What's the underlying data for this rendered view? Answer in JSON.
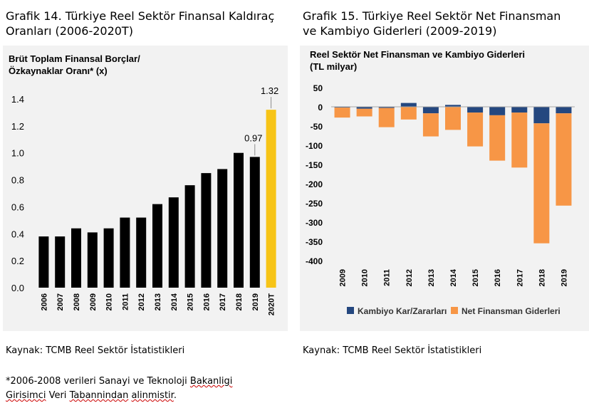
{
  "captions": {
    "left_line1": "Grafik 14. Türkiye Reel Sektör Finansal Kaldıraç",
    "left_line2": "Oranları (2006-2020T)",
    "right_line1": "Grafik 15. Türkiye Reel Sektör Net Finansman",
    "right_line2": "ve Kambiyo Giderleri (2009-2019)"
  },
  "sources": {
    "left": "Kaynak: TCMB Reel Sektör İstatistikleri",
    "right": "Kaynak: TCMB Reel Sektör İstatistikleri"
  },
  "note": {
    "part1": "*2006-2008 verileri Sanayi ve Teknoloji ",
    "part2": "Bakanligi",
    "part3": "Girisimci",
    "part4": " Veri ",
    "part5": "Tabannindan",
    "part6": " ",
    "part7": "alinmistir",
    "part8": "."
  },
  "chart_data": [
    {
      "type": "bar",
      "title_line1": "Brüt Toplam Finansal Borçlar/",
      "title_line2": "Özkaynaklar Oranı* (x)",
      "categories": [
        "2006",
        "2007",
        "2008",
        "2009",
        "2010",
        "2011",
        "2012",
        "2013",
        "2014",
        "2015",
        "2016",
        "2017",
        "2018",
        "2019",
        "2020T"
      ],
      "values": [
        0.38,
        0.38,
        0.44,
        0.41,
        0.44,
        0.52,
        0.52,
        0.62,
        0.67,
        0.76,
        0.85,
        0.88,
        1.0,
        0.97,
        1.32
      ],
      "ylim": [
        0,
        1.4
      ],
      "yticks": [
        "0.0",
        "0.2",
        "0.4",
        "0.6",
        "0.8",
        "1.0",
        "1.2",
        "1.4"
      ],
      "data_labels": [
        {
          "index": 13,
          "text": "0.97"
        },
        {
          "index": 14,
          "text": "1.32"
        }
      ],
      "colors": {
        "bar": "#000000",
        "highlight": "#f7c417"
      },
      "highlight_index": 14,
      "grid": false
    },
    {
      "type": "bar",
      "stacked": true,
      "title_line1": "Reel Sektör Net Finansman ve Kambiyo Giderleri",
      "title_line2": "(TL milyar)",
      "categories": [
        "2009",
        "2010",
        "2011",
        "2012",
        "2013",
        "2014",
        "2015",
        "2016",
        "2017",
        "2018",
        "2019"
      ],
      "series": [
        {
          "name": "Kambiyo Kar/Zararları",
          "color": "#24477f",
          "values": [
            -2,
            -5,
            -3,
            10,
            -17,
            5,
            -15,
            -22,
            -15,
            -43,
            -17
          ]
        },
        {
          "name": "Net Finansman Giderleri",
          "color": "#f79646",
          "values": [
            -26,
            -20,
            -50,
            -33,
            -60,
            -60,
            -88,
            -118,
            -143,
            -312,
            -240
          ]
        }
      ],
      "ylim": [
        -400,
        50
      ],
      "yticks": [
        "50",
        "0",
        "-50",
        "-100",
        "-150",
        "-200",
        "-250",
        "-300",
        "-350",
        "-400"
      ],
      "legend_position": "bottom",
      "grid": false
    }
  ]
}
